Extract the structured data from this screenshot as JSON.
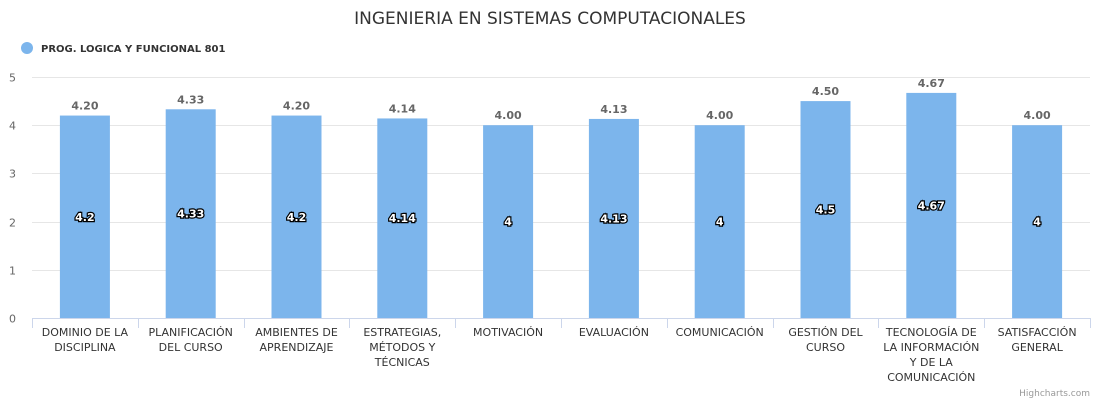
{
  "chart_data": {
    "type": "bar",
    "title": "INGENIERIA EN SISTEMAS COMPUTACIONALES",
    "legend_position": "top-left",
    "grid": true,
    "ylim": [
      0,
      5
    ],
    "yticks": [
      "0",
      "1",
      "2",
      "3",
      "4",
      "5"
    ],
    "categories": [
      [
        "DOMINIO DE LA",
        "DISCIPLINA"
      ],
      [
        "PLANIFICACIÓN",
        "DEL CURSO"
      ],
      [
        "AMBIENTES DE",
        "APRENDIZAJE"
      ],
      [
        "ESTRATEGIAS,",
        "MÉTODOS Y",
        "TÉCNICAS"
      ],
      [
        "MOTIVACIÓN"
      ],
      [
        "EVALUACIÓN"
      ],
      [
        "COMUNICACIÓN"
      ],
      [
        "GESTIÓN DEL",
        "CURSO"
      ],
      [
        "TECNOLOGÍA DE",
        "LA INFORMACIÓN",
        "Y DE LA",
        "COMUNICACIÓN"
      ],
      [
        "SATISFACCIÓN",
        "GENERAL"
      ]
    ],
    "series": [
      {
        "name": "PROG. LOGICA Y FUNCIONAL 801",
        "color": "#7cb5ec",
        "values": [
          4.2,
          4.33,
          4.2,
          4.14,
          4.0,
          4.13,
          4.0,
          4.5,
          4.67,
          4.0
        ],
        "top_labels": [
          "4.20",
          "4.33",
          "4.20",
          "4.14",
          "4.00",
          "4.13",
          "4.00",
          "4.50",
          "4.67",
          "4.00"
        ],
        "inner_labels": [
          "4.2",
          "4.33",
          "4.2",
          "4.14",
          "4",
          "4.13",
          "4",
          "4.5",
          "4.67",
          "4"
        ]
      }
    ]
  },
  "credits": "Highcharts.com"
}
